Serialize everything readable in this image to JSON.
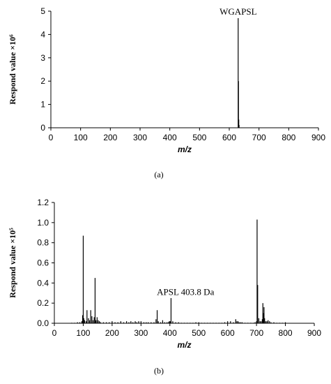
{
  "chart_data": [
    {
      "type": "bar",
      "panel_label": "(a)",
      "xlabel": "m/z",
      "ylabel": "Respond value ×10⁶",
      "xlim": [
        0,
        900
      ],
      "ylim": [
        0,
        5
      ],
      "xticks": [
        "0",
        "100",
        "200",
        "300",
        "400",
        "500",
        "600",
        "700",
        "800",
        "900"
      ],
      "yticks": [
        "0",
        "1",
        "2",
        "3",
        "4",
        "5"
      ],
      "grid": false,
      "annotations": [
        {
          "text": "WGAPSL",
          "x": 630,
          "y": 4.85
        }
      ],
      "peaks": {
        "x": [
          630,
          631,
          632,
          633,
          300,
          310,
          320
        ],
        "y": [
          4.7,
          2.0,
          0.35,
          0.12,
          0.01,
          0.01,
          0.01
        ]
      }
    },
    {
      "type": "bar",
      "panel_label": "(b)",
      "xlabel": "m/z",
      "ylabel": "Respond value ×10⁵",
      "xlim": [
        0,
        900
      ],
      "ylim": [
        0,
        1.2
      ],
      "xticks": [
        "0",
        "100",
        "200",
        "300",
        "400",
        "500",
        "600",
        "700",
        "800",
        "900"
      ],
      "yticks": [
        "0.0",
        "0.2",
        "0.4",
        "0.6",
        "0.8",
        "1.0",
        "1.2"
      ],
      "grid": false,
      "annotations": [
        {
          "text": "APSL 403.8 Da",
          "x": 355,
          "y": 0.28
        }
      ],
      "peaks": {
        "x": [
          60,
          70,
          80,
          88,
          95,
          98,
          100,
          102,
          105,
          110,
          113,
          118,
          122,
          126,
          130,
          134,
          138,
          141,
          144,
          148,
          152,
          156,
          160,
          170,
          180,
          190,
          200,
          210,
          220,
          230,
          240,
          250,
          258,
          265,
          272,
          280,
          285,
          292,
          300,
          310,
          318,
          325,
          335,
          345,
          352,
          356,
          360,
          368,
          375,
          382,
          390,
          395,
          398,
          401,
          404,
          410,
          420,
          430,
          440,
          450,
          460,
          470,
          480,
          490,
          500,
          510,
          520,
          530,
          540,
          550,
          560,
          570,
          580,
          590,
          600,
          610,
          620,
          628,
          632,
          636,
          640,
          645,
          650,
          660,
          670,
          680,
          690,
          695,
          700,
          702,
          704,
          708,
          712,
          716,
          720,
          722,
          724,
          726,
          728,
          732,
          736,
          740,
          745,
          750,
          760,
          770,
          780,
          790,
          800
        ],
        "y": [
          0.005,
          0.005,
          0.01,
          0.01,
          0.02,
          0.08,
          0.87,
          0.05,
          0.03,
          0.02,
          0.13,
          0.05,
          0.03,
          0.13,
          0.07,
          0.03,
          0.06,
          0.45,
          0.03,
          0.06,
          0.03,
          0.02,
          0.01,
          0.01,
          0.01,
          0.01,
          0.02,
          0.01,
          0.01,
          0.02,
          0.01,
          0.02,
          0.01,
          0.02,
          0.01,
          0.02,
          0.01,
          0.02,
          0.02,
          0.01,
          0.01,
          0.01,
          0.01,
          0.01,
          0.04,
          0.13,
          0.02,
          0.01,
          0.03,
          0.01,
          0.01,
          0.01,
          0.02,
          0.02,
          0.25,
          0.02,
          0.01,
          0.01,
          0.005,
          0.005,
          0.005,
          0.005,
          0.005,
          0.01,
          0.01,
          0.005,
          0.005,
          0.005,
          0.005,
          0.005,
          0.005,
          0.005,
          0.005,
          0.01,
          0.02,
          0.02,
          0.01,
          0.04,
          0.02,
          0.02,
          0.01,
          0.01,
          0.01,
          0.005,
          0.005,
          0.005,
          0.005,
          0.01,
          0.02,
          1.03,
          0.38,
          0.05,
          0.02,
          0.02,
          0.04,
          0.2,
          0.1,
          0.16,
          0.05,
          0.02,
          0.02,
          0.03,
          0.02,
          0.01,
          0.01,
          0.005,
          0.005,
          0.005,
          0.01
        ]
      }
    }
  ]
}
